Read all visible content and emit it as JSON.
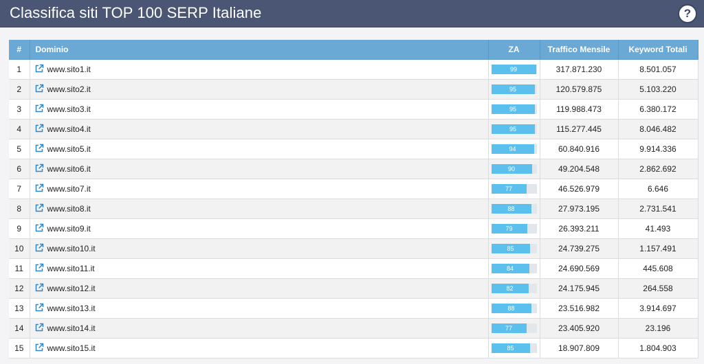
{
  "page": {
    "title": "Classifica siti TOP 100 SERP Italiane",
    "help_label": "?"
  },
  "table": {
    "headers": {
      "num": "#",
      "domain": "Dominio",
      "za": "ZA",
      "traffic": "Traffico Mensile",
      "keywords": "Keyword Totali"
    },
    "rows": [
      {
        "num": "1",
        "domain": "www.sito1.it",
        "za": 99,
        "traffic": "317.871.230",
        "keywords": "8.501.057"
      },
      {
        "num": "2",
        "domain": "www.sito2.it",
        "za": 95,
        "traffic": "120.579.875",
        "keywords": "5.103.220"
      },
      {
        "num": "3",
        "domain": "www.sito3.it",
        "za": 95,
        "traffic": "119.988.473",
        "keywords": "6.380.172"
      },
      {
        "num": "4",
        "domain": "www.sito4.it",
        "za": 95,
        "traffic": "115.277.445",
        "keywords": "8.046.482"
      },
      {
        "num": "5",
        "domain": "www.sito5.it",
        "za": 94,
        "traffic": "60.840.916",
        "keywords": "9.914.336"
      },
      {
        "num": "6",
        "domain": "www.sito6.it",
        "za": 90,
        "traffic": "49.204.548",
        "keywords": "2.862.692"
      },
      {
        "num": "7",
        "domain": "www.sito7.it",
        "za": 77,
        "traffic": "46.526.979",
        "keywords": "6.646"
      },
      {
        "num": "8",
        "domain": "www.sito8.it",
        "za": 88,
        "traffic": "27.973.195",
        "keywords": "2.731.541"
      },
      {
        "num": "9",
        "domain": "www.sito9.it",
        "za": 79,
        "traffic": "26.393.211",
        "keywords": "41.493"
      },
      {
        "num": "10",
        "domain": "www.sito10.it",
        "za": 85,
        "traffic": "24.739.275",
        "keywords": "1.157.491"
      },
      {
        "num": "11",
        "domain": "www.sito11.it",
        "za": 84,
        "traffic": "24.690.569",
        "keywords": "445.608"
      },
      {
        "num": "12",
        "domain": "www.sito12.it",
        "za": 82,
        "traffic": "24.175.945",
        "keywords": "264.558"
      },
      {
        "num": "13",
        "domain": "www.sito13.it",
        "za": 88,
        "traffic": "23.516.982",
        "keywords": "3.914.697"
      },
      {
        "num": "14",
        "domain": "www.sito14.it",
        "za": 77,
        "traffic": "23.405.920",
        "keywords": "23.196"
      },
      {
        "num": "15",
        "domain": "www.sito15.it",
        "za": 85,
        "traffic": "18.907.809",
        "keywords": "1.804.903"
      }
    ]
  },
  "colors": {
    "header_bg": "#4a5673",
    "table_header_bg": "#6aa9d6",
    "za_fill": "#5bc0ee",
    "za_track": "#e3e6ea",
    "link_icon": "#2f86c9"
  },
  "icons": {
    "help": "question-mark-icon",
    "external_link": "external-link-icon"
  }
}
